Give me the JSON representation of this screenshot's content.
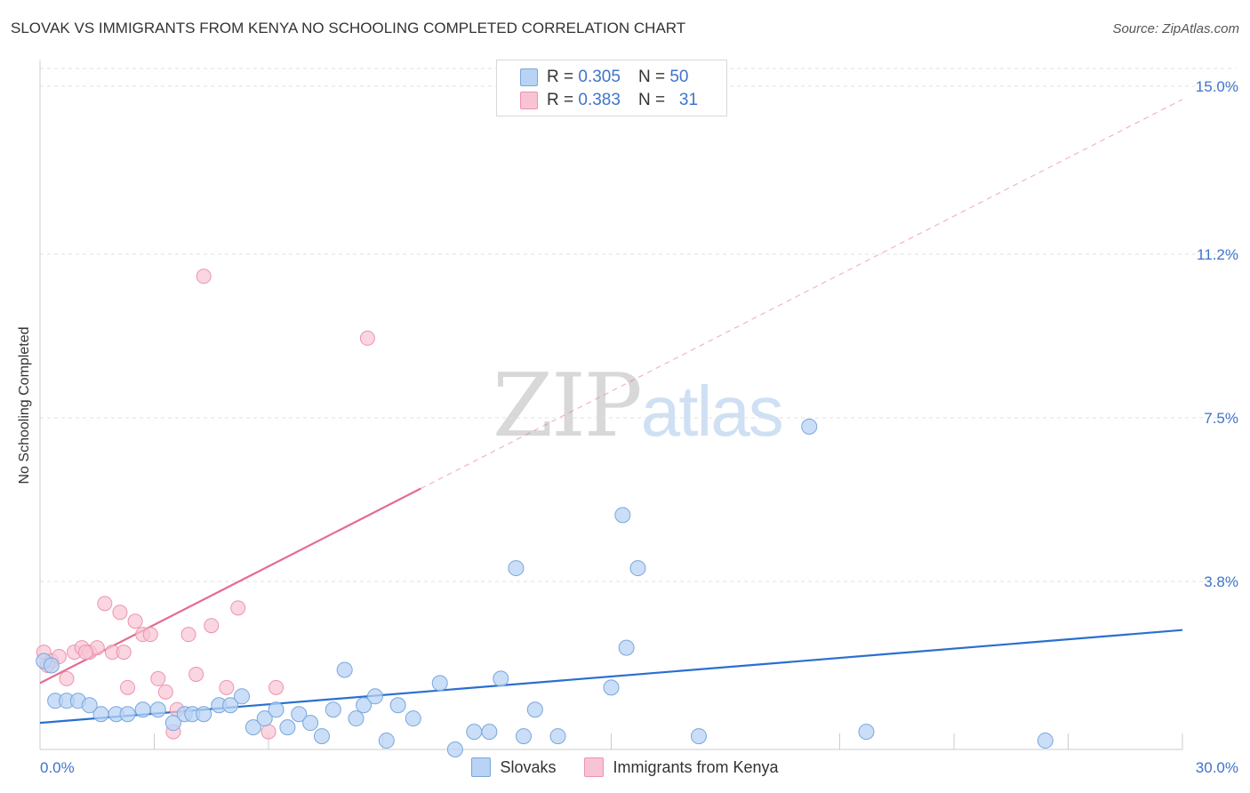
{
  "title": "SLOVAK VS IMMIGRANTS FROM KENYA NO SCHOOLING COMPLETED CORRELATION CHART",
  "source": "Source: ZipAtlas.com",
  "watermark": {
    "part1": "ZIP",
    "part2": "atlas"
  },
  "legend_top": {
    "rows": [
      {
        "r_label": "R =",
        "r_value": "0.305",
        "n_label": "N =",
        "n_value": "50"
      },
      {
        "r_label": "R =",
        "r_value": "0.383",
        "n_label": "N =",
        "n_value": "31"
      }
    ]
  },
  "legend_bottom": {
    "series1": "Slovaks",
    "series2": "Immigrants from Kenya"
  },
  "colors": {
    "blue_fill": "#b8d3f4",
    "blue_stroke": "#7aa6dc",
    "blue_line": "#2a6fcf",
    "pink_fill": "#f8c4d4",
    "pink_stroke": "#ec93af",
    "pink_line": "#e66b93",
    "axis_text": "#3f74c9",
    "grid": "#e2e2e2"
  },
  "chart_data": {
    "type": "scatter",
    "title": "SLOVAK VS IMMIGRANTS FROM KENYA NO SCHOOLING COMPLETED CORRELATION CHART",
    "xlabel": "",
    "ylabel": "No Schooling Completed",
    "xlim": [
      0,
      30
    ],
    "ylim": [
      0,
      15.4
    ],
    "x_tick_labels": [
      {
        "value": 0,
        "label": "0.0%"
      },
      {
        "value": 30,
        "label": "30.0%"
      }
    ],
    "x_minor_ticks": [
      3,
      6,
      9,
      15,
      21,
      24,
      27
    ],
    "y_ticks": [
      {
        "value": 3.8,
        "label": "3.8%"
      },
      {
        "value": 7.5,
        "label": "7.5%"
      },
      {
        "value": 11.2,
        "label": "11.2%"
      },
      {
        "value": 15.0,
        "label": "15.0%"
      }
    ],
    "series": [
      {
        "name": "Slovaks",
        "r": 0.305,
        "n": 50,
        "trend": {
          "x0": 0,
          "y0": 0.6,
          "x1": 30,
          "y1": 2.7
        },
        "points": [
          [
            0.1,
            2.0
          ],
          [
            0.4,
            1.1
          ],
          [
            0.7,
            1.1
          ],
          [
            1.0,
            1.1
          ],
          [
            1.6,
            0.8
          ],
          [
            2.0,
            0.8
          ],
          [
            2.3,
            0.8
          ],
          [
            2.7,
            0.9
          ],
          [
            3.1,
            0.9
          ],
          [
            3.5,
            0.6
          ],
          [
            3.8,
            0.8
          ],
          [
            4.0,
            0.8
          ],
          [
            4.3,
            0.8
          ],
          [
            4.7,
            1.0
          ],
          [
            5.0,
            1.0
          ],
          [
            5.3,
            1.2
          ],
          [
            5.6,
            0.5
          ],
          [
            5.9,
            0.7
          ],
          [
            6.2,
            0.9
          ],
          [
            6.5,
            0.5
          ],
          [
            6.8,
            0.8
          ],
          [
            7.1,
            0.6
          ],
          [
            7.4,
            0.3
          ],
          [
            7.7,
            0.9
          ],
          [
            8.0,
            1.8
          ],
          [
            8.3,
            0.7
          ],
          [
            8.5,
            1.0
          ],
          [
            8.8,
            1.2
          ],
          [
            9.1,
            0.2
          ],
          [
            9.4,
            1.0
          ],
          [
            9.8,
            0.7
          ],
          [
            10.5,
            1.5
          ],
          [
            10.9,
            0.0
          ],
          [
            11.4,
            0.4
          ],
          [
            11.8,
            0.4
          ],
          [
            12.1,
            1.6
          ],
          [
            12.5,
            4.1
          ],
          [
            12.7,
            0.3
          ],
          [
            13.0,
            0.9
          ],
          [
            13.6,
            0.3
          ],
          [
            15.0,
            1.4
          ],
          [
            15.3,
            5.3
          ],
          [
            15.4,
            2.3
          ],
          [
            15.7,
            4.1
          ],
          [
            17.3,
            0.3
          ],
          [
            20.2,
            7.3
          ],
          [
            21.7,
            0.4
          ],
          [
            26.4,
            0.2
          ],
          [
            0.3,
            1.9
          ],
          [
            1.3,
            1.0
          ]
        ]
      },
      {
        "name": "Immigrants from Kenya",
        "r": 0.383,
        "n": 31,
        "trend": {
          "x0": 0,
          "y0": 1.5,
          "x1": 10,
          "y1": 5.9
        },
        "trend_extended": {
          "x0": 10,
          "y0": 5.9,
          "x1": 30,
          "y1": 14.7
        },
        "points": [
          [
            0.1,
            2.2
          ],
          [
            0.3,
            2.0
          ],
          [
            0.5,
            2.1
          ],
          [
            0.7,
            1.6
          ],
          [
            0.9,
            2.2
          ],
          [
            1.1,
            2.3
          ],
          [
            1.3,
            2.2
          ],
          [
            1.5,
            2.3
          ],
          [
            1.7,
            3.3
          ],
          [
            1.9,
            2.2
          ],
          [
            2.1,
            3.1
          ],
          [
            2.2,
            2.2
          ],
          [
            2.3,
            1.4
          ],
          [
            2.5,
            2.9
          ],
          [
            2.7,
            2.6
          ],
          [
            2.9,
            2.6
          ],
          [
            3.1,
            1.6
          ],
          [
            3.3,
            1.3
          ],
          [
            3.5,
            0.4
          ],
          [
            3.6,
            0.9
          ],
          [
            3.9,
            2.6
          ],
          [
            4.1,
            1.7
          ],
          [
            4.3,
            10.7
          ],
          [
            4.5,
            2.8
          ],
          [
            4.9,
            1.4
          ],
          [
            5.2,
            3.2
          ],
          [
            6.0,
            0.4
          ],
          [
            6.2,
            1.4
          ],
          [
            8.6,
            9.3
          ],
          [
            0.2,
            1.9
          ],
          [
            1.2,
            2.2
          ]
        ]
      }
    ]
  }
}
